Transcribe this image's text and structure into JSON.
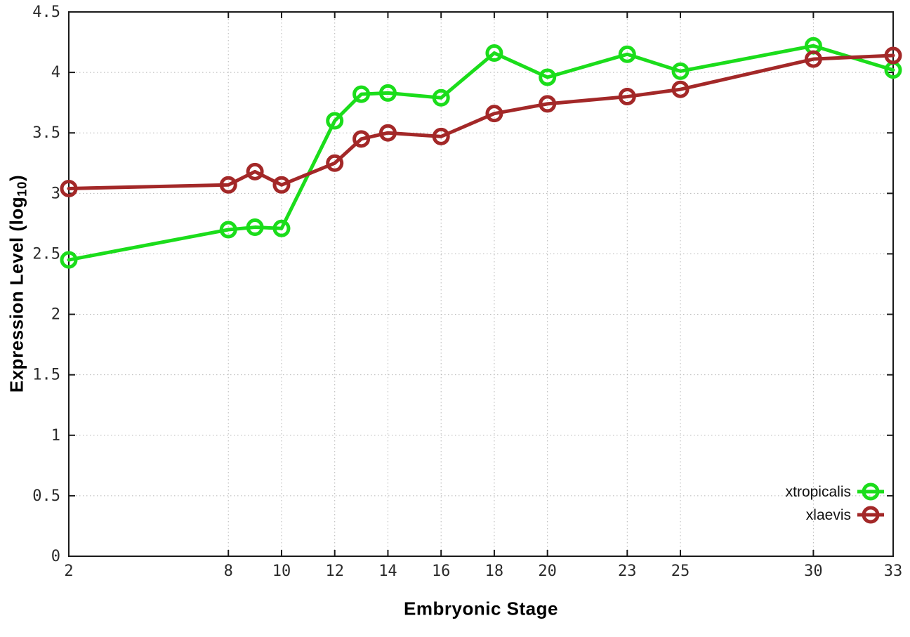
{
  "figure": {
    "background": "#ffffff",
    "ylabel_prefix": "Expression Level (log",
    "ylabel_subscript": "10",
    "ylabel_suffix": ")",
    "colors": {
      "axis": "#1a1a1a",
      "grid": "#b5b5b5",
      "tick_label": "#2b2b2b",
      "legend_text": "#111111"
    }
  },
  "chart_data": {
    "type": "line",
    "title": "",
    "xlabel": "Embryonic Stage",
    "ylabel": "Expression Level (log10)",
    "xlim": [
      2,
      33
    ],
    "ylim": [
      0,
      4.5
    ],
    "x_ticks": [
      2,
      8,
      10,
      12,
      14,
      16,
      18,
      20,
      23,
      25,
      30,
      33
    ],
    "y_ticks": [
      0,
      0.5,
      1,
      1.5,
      2,
      2.5,
      3,
      3.5,
      4,
      4.5
    ],
    "grid": true,
    "marker": "open-circle",
    "legend_position": "bottom-right",
    "x": [
      2,
      8,
      9,
      10,
      12,
      13,
      14,
      16,
      18,
      20,
      23,
      25,
      30,
      33
    ],
    "series": [
      {
        "name": "xtropicalis",
        "color": "#1bdd1b",
        "values": [
          2.45,
          2.7,
          2.72,
          2.71,
          3.6,
          3.82,
          3.83,
          3.79,
          4.16,
          3.96,
          4.15,
          4.01,
          4.22,
          4.02
        ]
      },
      {
        "name": "xlaevis",
        "color": "#a32828",
        "values": [
          3.04,
          3.07,
          3.18,
          3.07,
          3.25,
          3.45,
          3.5,
          3.47,
          3.66,
          3.74,
          3.8,
          3.86,
          4.11,
          4.14
        ]
      }
    ]
  }
}
